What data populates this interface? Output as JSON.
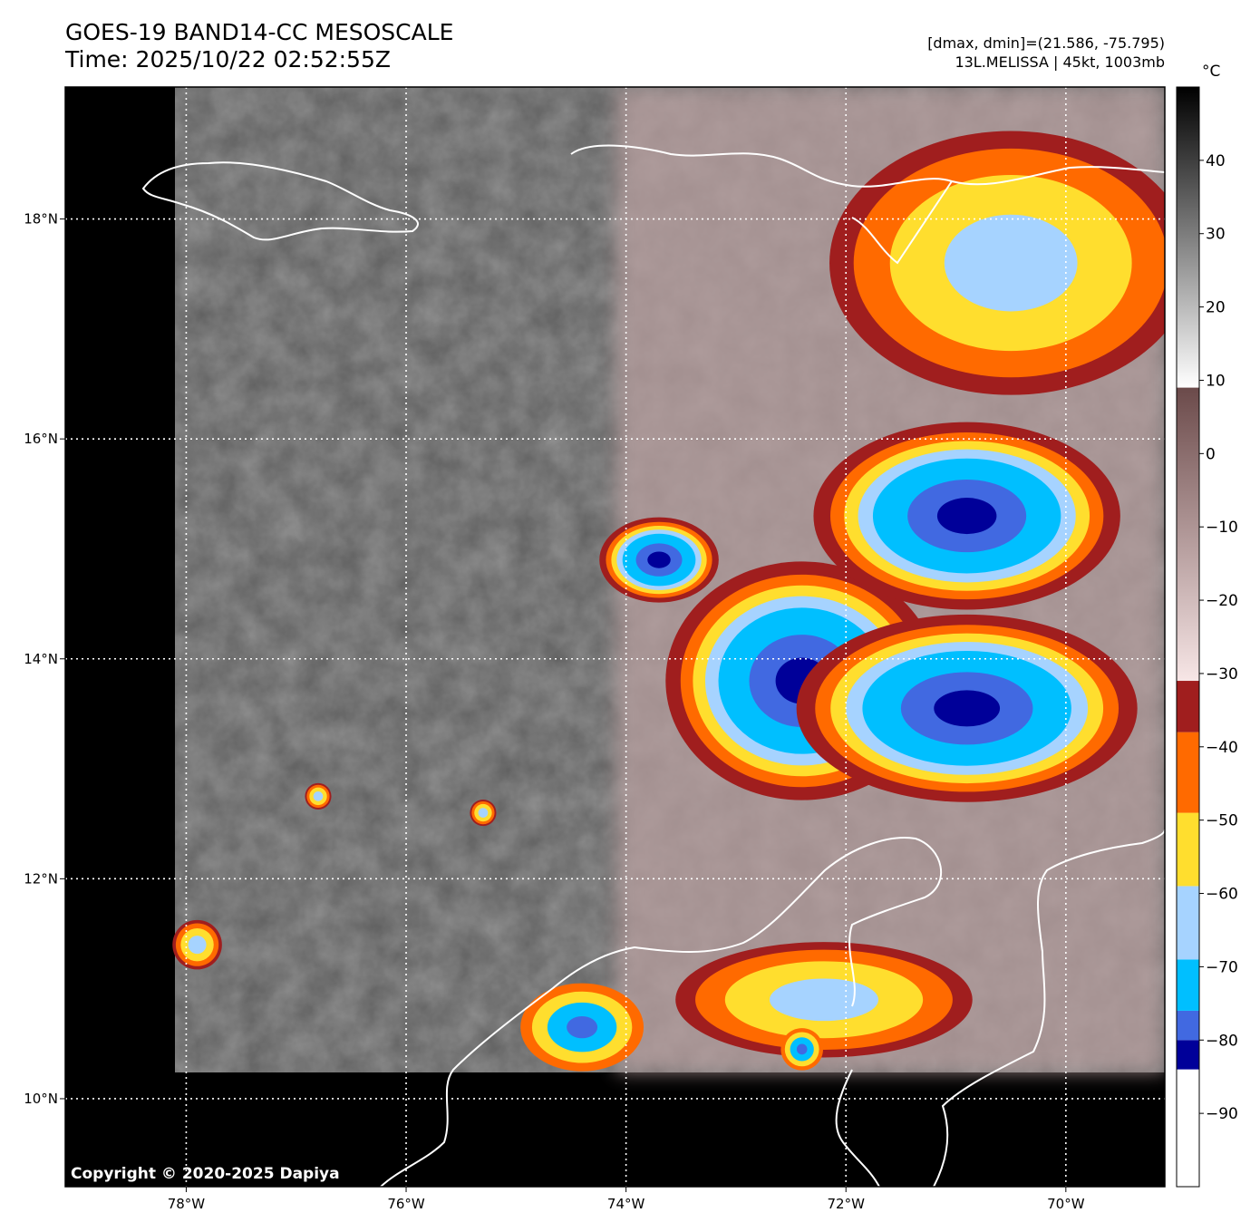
{
  "header": {
    "title_line1": "GOES-19 BAND14-CC MESOSCALE",
    "title_line2": "Time: 2025/10/22 02:52:55Z",
    "meta_line1": "[dmax, dmin]=(21.586, -75.795)",
    "meta_line2": "13L.MELISSA | 45kt, 1003mb"
  },
  "map": {
    "lon_ticks": [
      {
        "value": -78,
        "label": "78°W"
      },
      {
        "value": -76,
        "label": "76°W"
      },
      {
        "value": -74,
        "label": "74°W"
      },
      {
        "value": -72,
        "label": "72°W"
      },
      {
        "value": -70,
        "label": "70°W"
      }
    ],
    "lat_ticks": [
      {
        "value": 18,
        "label": "18°N"
      },
      {
        "value": 16,
        "label": "16°N"
      },
      {
        "value": 14,
        "label": "14°N"
      },
      {
        "value": 12,
        "label": "12°N"
      },
      {
        "value": 10,
        "label": "10°N"
      }
    ],
    "extent": {
      "lon_min": -79.1,
      "lon_max": -69.1,
      "lat_min": 9.2,
      "lat_max": 19.2
    },
    "copyright": "Copyright © 2020-2025 Dapiya",
    "cloud_cells": [
      {
        "lon": -72.4,
        "lat": 13.8,
        "rx": 0.8,
        "ry": 0.7,
        "level": "cold"
      },
      {
        "lon": -70.9,
        "lat": 13.55,
        "rx": 1.0,
        "ry": 0.55,
        "level": "cold"
      },
      {
        "lon": -70.9,
        "lat": 15.3,
        "rx": 0.9,
        "ry": 0.55,
        "level": "cold"
      },
      {
        "lon": -73.7,
        "lat": 14.9,
        "rx": 0.35,
        "ry": 0.25,
        "level": "cold"
      },
      {
        "lon": -70.5,
        "lat": 17.6,
        "rx": 1.1,
        "ry": 0.8,
        "level": "warmish"
      },
      {
        "lon": -72.2,
        "lat": 10.9,
        "rx": 0.9,
        "ry": 0.35,
        "level": "warmish"
      },
      {
        "lon": -74.4,
        "lat": 10.65,
        "rx": 0.35,
        "ry": 0.25,
        "level": "cool"
      },
      {
        "lon": -72.4,
        "lat": 10.45,
        "rx": 0.12,
        "ry": 0.12,
        "level": "cool"
      },
      {
        "lon": -77.9,
        "lat": 11.4,
        "rx": 0.15,
        "ry": 0.15,
        "level": "warmish"
      },
      {
        "lon": -75.3,
        "lat": 12.6,
        "rx": 0.08,
        "ry": 0.08,
        "level": "warmish"
      },
      {
        "lon": -76.8,
        "lat": 12.75,
        "rx": 0.08,
        "ry": 0.08,
        "level": "warmish"
      }
    ]
  },
  "colorbar": {
    "unit": "°C",
    "tick_values": [
      40,
      30,
      20,
      10,
      0,
      -10,
      -20,
      -30,
      -40,
      -50,
      -60,
      -70,
      -80,
      -90
    ],
    "tick_labels": [
      "40",
      "30",
      "20",
      "10",
      "0",
      "−10",
      "−20",
      "−30",
      "−40",
      "−50",
      "−60",
      "−70",
      "−80",
      "−90"
    ],
    "range": [
      -100,
      50
    ],
    "bands": [
      {
        "from": -100,
        "to": -84,
        "color": "#ffffff"
      },
      {
        "from": -84,
        "to": -80,
        "color": "#000099"
      },
      {
        "from": -80,
        "to": -76,
        "color": "#4169e1"
      },
      {
        "from": -76,
        "to": -69,
        "color": "#00bfff"
      },
      {
        "from": -69,
        "to": -59,
        "color": "#a6d3ff"
      },
      {
        "from": -59,
        "to": -49,
        "color": "#ffde2e"
      },
      {
        "from": -49,
        "to": -38,
        "color": "#ff6a00"
      },
      {
        "from": -38,
        "to": -31,
        "color": "#a01e1e"
      }
    ],
    "gradients": [
      {
        "from": -31,
        "to": 9,
        "color_low": "#f7e6e6",
        "color_high": "#6b4a4a"
      },
      {
        "from": 9,
        "to": 50,
        "color_low": "#ffffff",
        "color_high": "#000000"
      }
    ]
  }
}
